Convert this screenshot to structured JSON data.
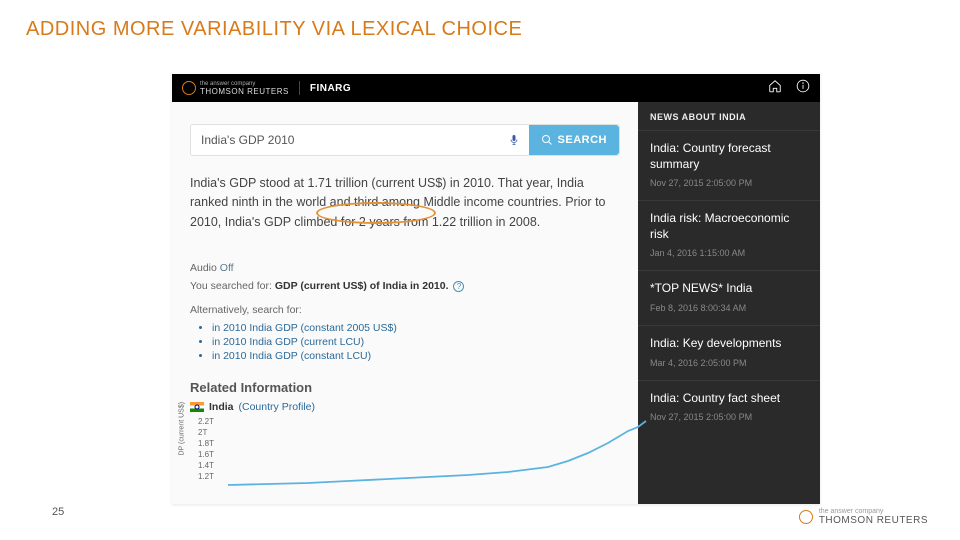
{
  "slide": {
    "title": "ADDING MORE VARIABILITY VIA LEXICAL CHOICE",
    "page_number": "25"
  },
  "topbar": {
    "brand_small": "the answer company",
    "brand_main": "THOMSON REUTERS",
    "app_name": "FINARG"
  },
  "search": {
    "value": "India's GDP 2010",
    "button_label": "SEARCH"
  },
  "result": {
    "text": "India's GDP stood at 1.71 trillion (current US$) in 2010. That year, India ranked ninth in the world and third among Middle income countries. Prior to 2010, India's GDP climbed for 2 years from 1.22 trillion in 2008."
  },
  "audio": {
    "label": "Audio",
    "state": "Off"
  },
  "searched": {
    "prefix": "You searched for:",
    "query": "GDP (current US$) of India in 2010."
  },
  "alternatives": {
    "label": "Alternatively, search for:",
    "items": [
      "in 2010 India GDP (constant 2005 US$)",
      "in 2010 India GDP (current LCU)",
      "in 2010 India GDP (constant LCU)"
    ]
  },
  "related": {
    "heading": "Related Information",
    "country": "India",
    "profile_label": "(Country Profile)"
  },
  "chart": {
    "y_ticks": [
      "2.2T",
      "2T",
      "1.8T",
      "1.6T",
      "1.4T",
      "1.2T"
    ],
    "y_axis_label": "DP (current US$)",
    "line_color": "#5bb3e0",
    "points": [
      [
        0,
        68
      ],
      [
        40,
        67
      ],
      [
        80,
        66
      ],
      [
        120,
        64
      ],
      [
        160,
        62
      ],
      [
        200,
        60
      ],
      [
        240,
        58
      ],
      [
        280,
        55
      ],
      [
        320,
        50
      ],
      [
        340,
        44
      ],
      [
        360,
        36
      ],
      [
        380,
        26
      ],
      [
        400,
        14
      ],
      [
        410,
        10
      ],
      [
        418,
        4
      ]
    ]
  },
  "news": {
    "header": "NEWS ABOUT INDIA",
    "items": [
      {
        "title": "India: Country forecast summary",
        "date": "Nov 27, 2015 2:05:00 PM"
      },
      {
        "title": "India risk: Macroeconomic risk",
        "date": "Jan 4, 2016 1:15:00 AM"
      },
      {
        "title": "*TOP NEWS* India",
        "date": "Feb 8, 2016 8:00:34 AM"
      },
      {
        "title": "India: Key developments",
        "date": "Mar 4, 2016 2:05:00 PM"
      },
      {
        "title": "India: Country fact sheet",
        "date": "Nov 27, 2015 2:05:00 PM"
      }
    ]
  },
  "footer": {
    "brand_small": "the answer company",
    "brand_main": "THOMSON REUTERS"
  },
  "colors": {
    "accent_orange": "#d87a1a",
    "search_blue": "#5bb3e0",
    "link_blue": "#2a6a9a",
    "news_bg": "#2a2a2a"
  }
}
